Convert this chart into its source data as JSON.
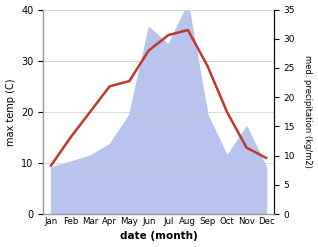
{
  "months": [
    "Jan",
    "Feb",
    "Mar",
    "Apr",
    "May",
    "Jun",
    "Jul",
    "Aug",
    "Sep",
    "Oct",
    "Nov",
    "Dec"
  ],
  "month_indices": [
    0,
    1,
    2,
    3,
    4,
    5,
    6,
    7,
    8,
    9,
    10,
    11
  ],
  "temperature": [
    9.5,
    15,
    20,
    25,
    26,
    32,
    35,
    36,
    29,
    20,
    13,
    11
  ],
  "precipitation": [
    8,
    9,
    10,
    12,
    17,
    32,
    29,
    36,
    17,
    10,
    15,
    8
  ],
  "temp_color": "#c0392b",
  "precip_fill_color": "#b8c4ee",
  "temp_ylim": [
    0,
    40
  ],
  "precip_ylim": [
    0,
    35
  ],
  "temp_yticks": [
    0,
    10,
    20,
    30,
    40
  ],
  "precip_yticks": [
    0,
    5,
    10,
    15,
    20,
    25,
    30,
    35
  ],
  "xlabel": "date (month)",
  "ylabel_left": "max temp (C)",
  "ylabel_right": "med. precipitation (kg/m2)",
  "background_color": "#ffffff",
  "line_width": 1.8,
  "grid_color": "#cccccc"
}
